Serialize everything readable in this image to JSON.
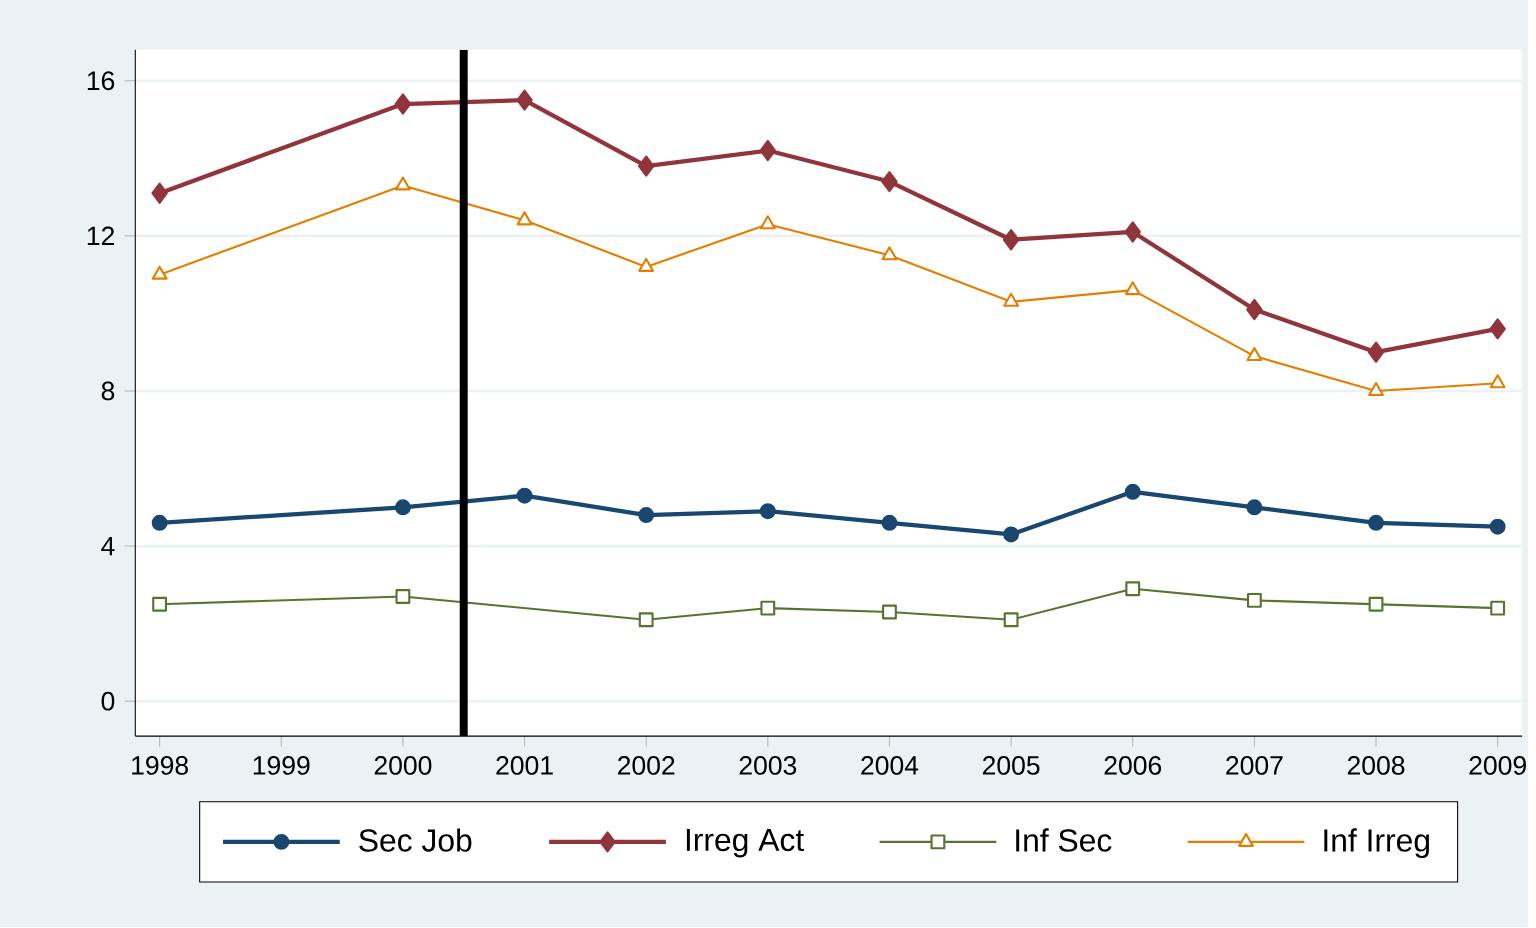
{
  "chart_data": {
    "type": "line",
    "x": [
      1998,
      2000,
      2001,
      2002,
      2003,
      2004,
      2005,
      2006,
      2007,
      2008,
      2009
    ],
    "series": [
      {
        "name": "Sec Job",
        "color": "#1a476f",
        "marker": "circle",
        "values": [
          4.6,
          5.0,
          5.3,
          4.8,
          4.9,
          4.6,
          4.3,
          5.4,
          5.0,
          4.6,
          4.5
        ]
      },
      {
        "name": "Irreg Act",
        "color": "#90353b",
        "marker": "diamond",
        "values": [
          13.1,
          15.4,
          15.5,
          13.8,
          14.2,
          13.4,
          11.9,
          12.1,
          10.1,
          9.0,
          9.6
        ]
      },
      {
        "name": "Inf Sec",
        "color": "#55752f",
        "marker": "square",
        "x": [
          1998,
          2000,
          2002,
          2003,
          2004,
          2005,
          2006,
          2007,
          2008,
          2009
        ],
        "values": [
          2.5,
          2.7,
          2.1,
          2.4,
          2.3,
          2.1,
          2.9,
          2.6,
          2.5,
          2.4
        ]
      },
      {
        "name": "Inf Irreg",
        "color": "#e37e00",
        "marker": "triangle",
        "values": [
          11.0,
          13.3,
          12.4,
          11.2,
          12.3,
          11.5,
          10.3,
          10.6,
          8.9,
          8.0,
          8.2
        ]
      }
    ],
    "xlim": [
      1997.8,
      2009.2
    ],
    "ylim": [
      -0.9,
      16.8
    ],
    "xticks": [
      1998,
      1999,
      2000,
      2001,
      2002,
      2003,
      2004,
      2005,
      2006,
      2007,
      2008,
      2009
    ],
    "yticks": [
      0,
      4,
      8,
      12,
      16
    ],
    "ref_lines": [
      {
        "axis": "x",
        "value": 2000.5,
        "color": "#000000"
      }
    ],
    "grid": "y",
    "legend": "bottom"
  }
}
